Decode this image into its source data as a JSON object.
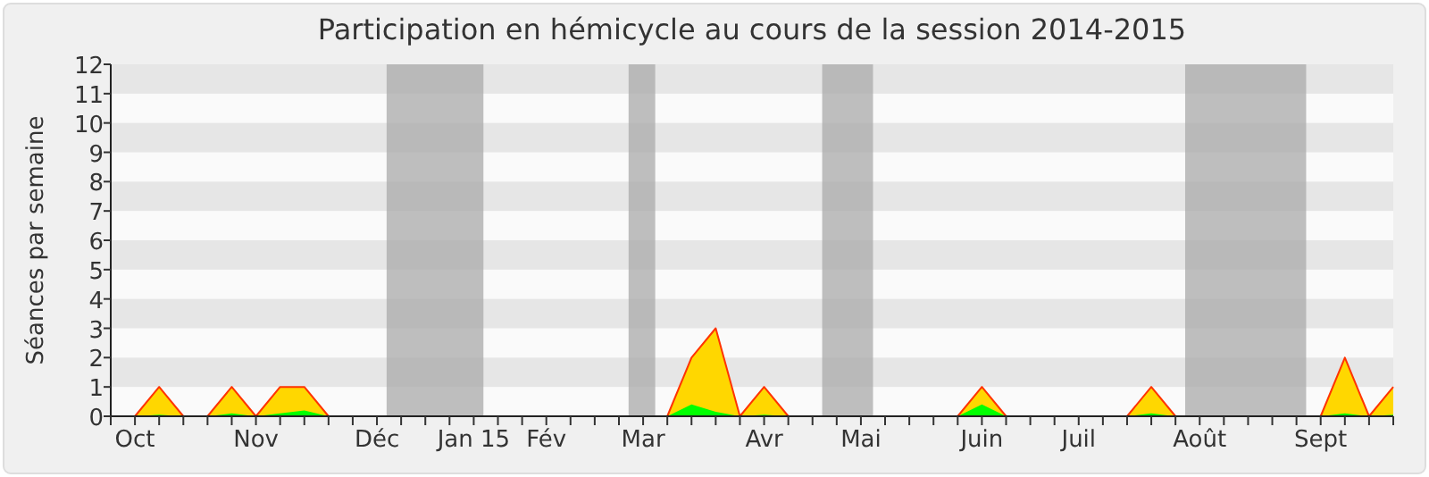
{
  "chart_data": {
    "type": "area",
    "title": "Participation en hémicycle au cours de la session 2014-2015",
    "ylabel": "Séances par semaine",
    "categories": [
      null,
      "Oct",
      null,
      null,
      null,
      null,
      "Nov",
      null,
      null,
      null,
      null,
      "Déc",
      null,
      null,
      null,
      "Jan 15",
      null,
      null,
      "Fév",
      null,
      null,
      null,
      "Mar",
      null,
      null,
      null,
      null,
      "Avr",
      null,
      null,
      null,
      "Mai",
      null,
      null,
      null,
      null,
      "Juin",
      null,
      null,
      null,
      "Juil",
      null,
      null,
      null,
      null,
      "Août",
      null,
      null,
      null,
      null,
      "Sept",
      null,
      null,
      null
    ],
    "ylim": [
      0,
      12
    ],
    "yticks": [
      0,
      1,
      2,
      3,
      4,
      5,
      6,
      7,
      8,
      9,
      10,
      11,
      12
    ],
    "series": [
      {
        "color": "#ffd700",
        "values": [
          0,
          0,
          1,
          0,
          0,
          1,
          0,
          1,
          1,
          0,
          0,
          0,
          0,
          0,
          0,
          0,
          0,
          0,
          0,
          0,
          0,
          0,
          0,
          0,
          2,
          3,
          0,
          1,
          0,
          0,
          0,
          0,
          0,
          0,
          0,
          0,
          1,
          0,
          0,
          0,
          0,
          0,
          0,
          1,
          0,
          0,
          0,
          0,
          0,
          0,
          0,
          2,
          0,
          1
        ]
      },
      {
        "color": "#00ff00",
        "values": [
          0,
          0,
          0.05,
          0,
          0,
          0.1,
          0,
          0.1,
          0.2,
          0,
          0,
          0,
          0,
          0,
          0,
          0,
          0,
          0,
          0,
          0,
          0,
          0,
          0,
          0,
          0.4,
          0.15,
          0,
          0.05,
          0,
          0,
          0,
          0,
          0,
          0,
          0,
          0,
          0.4,
          0,
          0,
          0,
          0,
          0,
          0,
          0.1,
          0,
          0,
          0,
          0,
          0,
          0,
          0,
          0.1,
          0,
          0.05
        ]
      }
    ]
  }
}
